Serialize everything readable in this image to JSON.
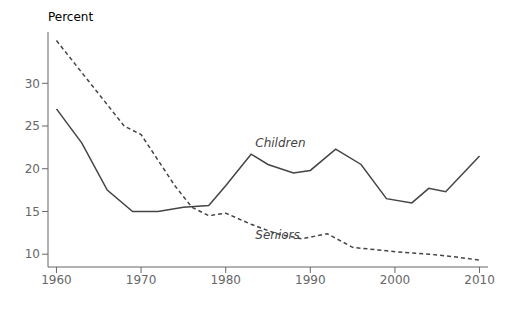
{
  "chart_data": {
    "type": "line",
    "ylabel": "Percent",
    "series": [
      {
        "x": [
          1960,
          1963,
          1966,
          1969,
          1972,
          1975,
          1978,
          1980,
          1983,
          1985,
          1988,
          1990,
          1993,
          1996,
          1999,
          2002,
          2004,
          2006,
          2010
        ],
        "values": [
          27.0,
          23.0,
          17.5,
          15.0,
          15.0,
          15.5,
          15.7,
          18.0,
          21.7,
          20.5,
          19.5,
          19.8,
          22.3,
          20.5,
          16.5,
          16.0,
          17.7,
          17.3,
          21.5
        ],
        "color": "#444444",
        "line_style": "solid"
      },
      {
        "x": [
          1960,
          1962,
          1964,
          1966,
          1968,
          1970,
          1972,
          1974,
          1976,
          1978,
          1980,
          1983,
          1986,
          1989,
          1992,
          1995,
          1998,
          2001,
          2004,
          2007,
          2010
        ],
        "values": [
          35.0,
          32.5,
          30.0,
          27.5,
          25.0,
          24.0,
          21.0,
          18.0,
          15.5,
          14.5,
          14.8,
          13.5,
          12.4,
          11.8,
          12.4,
          10.8,
          10.5,
          10.2,
          10.0,
          9.7,
          9.3
        ],
        "color": "#444444",
        "line_style": "dashed"
      }
    ],
    "annotations": [
      {
        "text": "Children",
        "x": 1983.5,
        "y": 22.2
      },
      {
        "text": "Seniors",
        "x": 1983.5,
        "y": 13.2
      }
    ],
    "xlim": [
      1959,
      2011
    ],
    "ylim": [
      8.5,
      36
    ],
    "xticks": [
      1960,
      1970,
      1980,
      1990,
      2000,
      2010
    ],
    "yticks": [
      10,
      15,
      20,
      25,
      30
    ],
    "grid": false
  }
}
